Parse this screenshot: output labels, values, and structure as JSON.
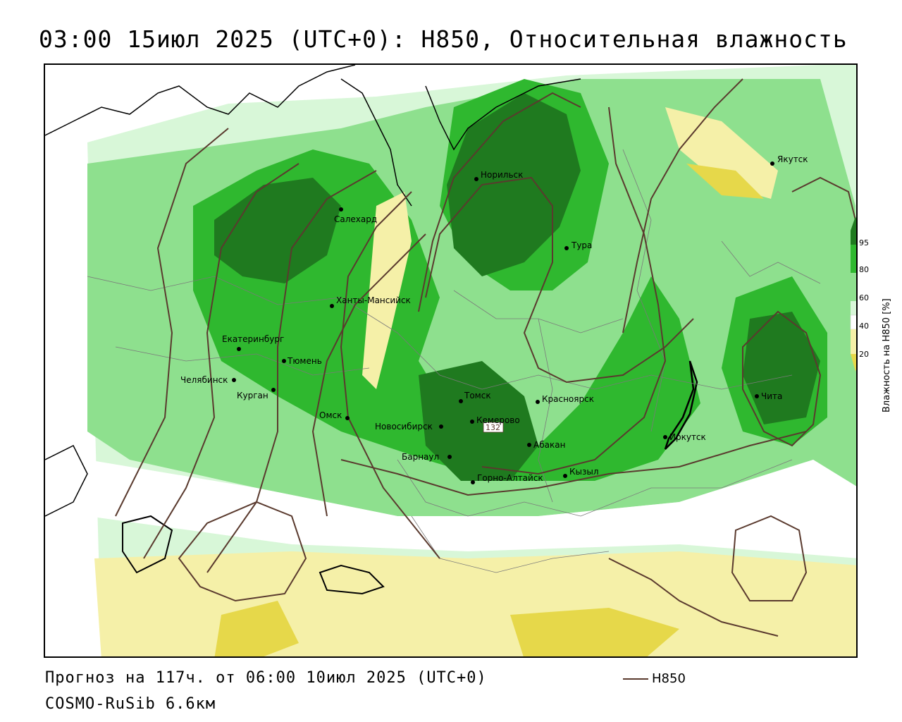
{
  "title": "03:00 15июл 2025 (UTC+0): H850, Относительная влажность",
  "forecast": "Прогноз на 117ч. от 06:00 10июл 2025 (UTC+0)",
  "model": "COSMO-RuSib 6.6км",
  "contour_legend": "H850",
  "contour_label": "132",
  "colorbar": {
    "title": "Влажность на H850 [%]",
    "ticks": [
      "95",
      "80",
      "60",
      "40",
      "20"
    ],
    "colors": {
      "c95": "#1f7a1f",
      "c80": "#2fb82f",
      "c60": "#8ee08e",
      "c50": "#d8f7d8",
      "c40": "#ffffff",
      "c20": "#f5f0a8",
      "c0": "#e6d84a"
    }
  },
  "cities": [
    {
      "name": "Якутск"
    },
    {
      "name": "Норильск"
    },
    {
      "name": "Салехард"
    },
    {
      "name": "Тура"
    },
    {
      "name": "Ханты-Мансийск"
    },
    {
      "name": "Екатеринбург"
    },
    {
      "name": "Тюмень"
    },
    {
      "name": "Челябинск"
    },
    {
      "name": "Курган"
    },
    {
      "name": "Омск"
    },
    {
      "name": "Новосибирск"
    },
    {
      "name": "Томск"
    },
    {
      "name": "Кемерово"
    },
    {
      "name": "Красноярск"
    },
    {
      "name": "Барнаул"
    },
    {
      "name": "Абакан"
    },
    {
      "name": "Иркутск"
    },
    {
      "name": "Чита"
    },
    {
      "name": "Горно-Алтайск"
    },
    {
      "name": "Кызыл"
    }
  ]
}
